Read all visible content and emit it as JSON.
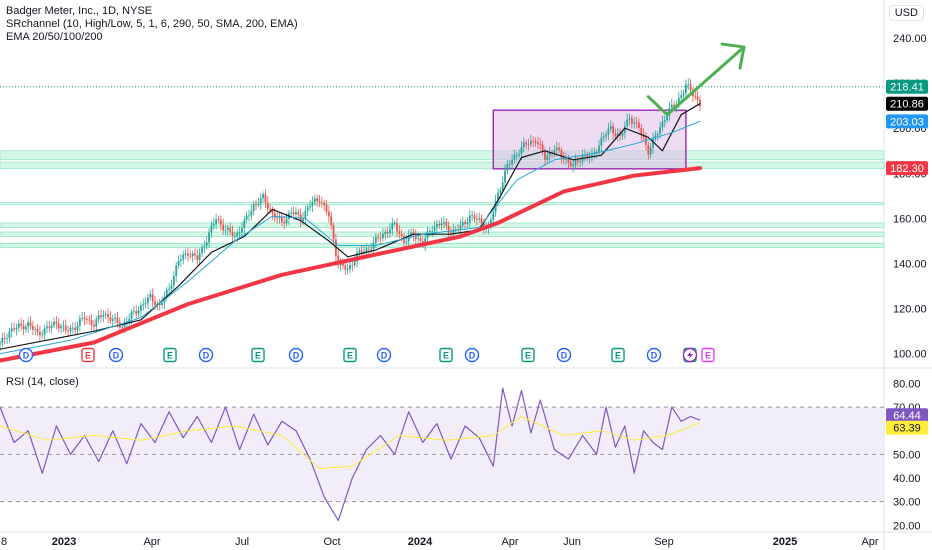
{
  "legend": {
    "title": "Badger Meter, Inc., 1D, NYSE",
    "sr": "SRchannel (10, High/Low, 5, 1, 6, 290, 50, SMA, 200, EMA)",
    "ema": "EMA 20/50/100/200"
  },
  "currency": "USD",
  "rsi_title": "RSI (14, close)",
  "chart_data": [
    {
      "type": "line",
      "title": "Badger Meter, Inc., 1D, NYSE",
      "x_ticks": [
        "8",
        "2023",
        "Apr",
        "Jul",
        "Oct",
        "2024",
        "Apr",
        "Jun",
        "Sep",
        "2025",
        "Apr"
      ],
      "y_ticks": [
        100,
        120,
        140,
        160,
        180,
        200,
        220,
        240
      ],
      "ylim": [
        95,
        248
      ],
      "price_labels": [
        {
          "text": "218.41",
          "value": 218.41,
          "color": "#089981"
        },
        {
          "text": "210.86",
          "value": 210.86,
          "color": "#000000"
        },
        {
          "text": "203.03",
          "value": 203.03,
          "color": "#2196f3"
        },
        {
          "text": "182.30",
          "value": 182.3,
          "color": "#f23645"
        }
      ],
      "price_line": 218.41,
      "series": [
        {
          "values": [
            [
              0,
              104
            ],
            [
              4,
              110
            ],
            [
              8,
              112
            ],
            [
              12,
              113
            ],
            [
              16,
              109
            ],
            [
              20,
              111
            ],
            [
              24,
              114
            ],
            [
              28,
              110
            ],
            [
              32,
              112
            ],
            [
              36,
              116
            ],
            [
              40,
              113
            ],
            [
              44,
              118
            ],
            [
              48,
              115
            ],
            [
              52,
              112
            ],
            [
              56,
              117
            ],
            [
              60,
              121
            ],
            [
              64,
              125
            ],
            [
              68,
              121
            ],
            [
              72,
              129
            ],
            [
              76,
              141
            ],
            [
              80,
              145
            ],
            [
              84,
              142
            ],
            [
              88,
              151
            ],
            [
              92,
              160
            ],
            [
              96,
              155
            ],
            [
              100,
              152
            ],
            [
              104,
              158
            ],
            [
              108,
              166
            ],
            [
              112,
              169
            ],
            [
              116,
              162
            ],
            [
              120,
              158
            ],
            [
              124,
              163
            ],
            [
              128,
              160
            ],
            [
              132,
              166
            ],
            [
              136,
              169
            ],
            [
              140,
              161
            ],
            [
              144,
              140
            ],
            [
              148,
              137
            ],
            [
              152,
              144
            ],
            [
              156,
              146
            ],
            [
              160,
              150
            ],
            [
              164,
              154
            ],
            [
              168,
              157
            ],
            [
              172,
              150
            ],
            [
              176,
              153
            ],
            [
              180,
              149
            ],
            [
              184,
              156
            ],
            [
              188,
              158
            ],
            [
              192,
              154
            ],
            [
              196,
              156
            ],
            [
              200,
              161
            ],
            [
              204,
              159
            ],
            [
              208,
              155
            ],
            [
              212,
              171
            ],
            [
              216,
              183
            ],
            [
              220,
              189
            ],
            [
              224,
              193
            ],
            [
              228,
              195
            ],
            [
              232,
              187
            ],
            [
              236,
              191
            ],
            [
              240,
              187
            ],
            [
              244,
              183
            ],
            [
              248,
              188
            ],
            [
              252,
              187
            ],
            [
              256,
              195
            ],
            [
              260,
              200
            ],
            [
              264,
              196
            ],
            [
              268,
              205
            ],
            [
              272,
              200
            ],
            [
              276,
              190
            ],
            [
              280,
              198
            ],
            [
              284,
              207
            ],
            [
              288,
              211
            ],
            [
              292,
              219
            ],
            [
              296,
              214
            ],
            [
              298,
              210.86
            ]
          ]
        },
        {
          "name": "EMA 20",
          "color": "#131722",
          "values": [
            [
              0,
              102
            ],
            [
              20,
              106
            ],
            [
              40,
              110
            ],
            [
              60,
              115
            ],
            [
              76,
              130
            ],
            [
              90,
              145
            ],
            [
              104,
              152
            ],
            [
              116,
              164
            ],
            [
              128,
              159
            ],
            [
              140,
              150
            ],
            [
              148,
              143
            ],
            [
              160,
              146
            ],
            [
              176,
              153
            ],
            [
              192,
              153
            ],
            [
              204,
              155
            ],
            [
              212,
              168
            ],
            [
              222,
              187
            ],
            [
              232,
              190
            ],
            [
              244,
              186
            ],
            [
              256,
              188
            ],
            [
              266,
              200
            ],
            [
              276,
              196
            ],
            [
              282,
              190
            ],
            [
              290,
              206
            ],
            [
              298,
              210.86
            ]
          ]
        },
        {
          "name": "EMA 50",
          "color": "#26a8d4",
          "values": [
            [
              0,
              100
            ],
            [
              30,
              106
            ],
            [
              60,
              116
            ],
            [
              80,
              132
            ],
            [
              100,
              150
            ],
            [
              116,
              161
            ],
            [
              130,
              160
            ],
            [
              144,
              148
            ],
            [
              160,
              148
            ],
            [
              180,
              153
            ],
            [
              204,
              156
            ],
            [
              220,
              177
            ],
            [
              236,
              186
            ],
            [
              254,
              189
            ],
            [
              270,
              193
            ],
            [
              286,
              198
            ],
            [
              298,
              203.03
            ]
          ]
        },
        {
          "name": "EMA 200",
          "color": "#f23645",
          "values": [
            [
              0,
              97
            ],
            [
              40,
              105
            ],
            [
              80,
              122
            ],
            [
              120,
              135
            ],
            [
              160,
              144
            ],
            [
              196,
              152
            ],
            [
              212,
              158
            ],
            [
              240,
              172
            ],
            [
              270,
              179
            ],
            [
              298,
              182.3
            ]
          ]
        }
      ],
      "markers": [
        "D",
        "E",
        "D",
        "E",
        "D",
        "E",
        "D",
        "E",
        "D",
        "E",
        "D",
        "E",
        "D",
        "E",
        "D",
        "E"
      ],
      "projection": "up"
    },
    {
      "type": "line",
      "title": "RSI (14, close)",
      "y_ticks": [
        20,
        30,
        40,
        50,
        60,
        70,
        80
      ],
      "ylim": [
        18,
        84
      ],
      "bands": [
        30,
        50,
        70
      ],
      "value_labels": [
        {
          "text": "64.44",
          "value": 64.44,
          "color": "#7e57c2"
        },
        {
          "text": "63.39",
          "value": 63.39,
          "color": "#ffeb3b"
        }
      ],
      "series": [
        {
          "name": "RSI",
          "color": "#7e57c2",
          "values": [
            [
              0,
              70
            ],
            [
              6,
              55
            ],
            [
              12,
              60
            ],
            [
              18,
              42
            ],
            [
              24,
              62
            ],
            [
              30,
              50
            ],
            [
              36,
              58
            ],
            [
              42,
              47
            ],
            [
              48,
              60
            ],
            [
              54,
              46
            ],
            [
              60,
              63
            ],
            [
              66,
              55
            ],
            [
              72,
              68
            ],
            [
              78,
              57
            ],
            [
              84,
              66
            ],
            [
              90,
              55
            ],
            [
              96,
              70
            ],
            [
              102,
              52
            ],
            [
              108,
              67
            ],
            [
              114,
              54
            ],
            [
              120,
              64
            ],
            [
              126,
              60
            ],
            [
              132,
              48
            ],
            [
              138,
              32
            ],
            [
              144,
              22
            ],
            [
              150,
              40
            ],
            [
              156,
              52
            ],
            [
              162,
              58
            ],
            [
              168,
              50
            ],
            [
              174,
              68
            ],
            [
              180,
              55
            ],
            [
              186,
              63
            ],
            [
              192,
              48
            ],
            [
              198,
              62
            ],
            [
              204,
              57
            ],
            [
              210,
              45
            ],
            [
              214,
              78
            ],
            [
              218,
              62
            ],
            [
              222,
              77
            ],
            [
              226,
              59
            ],
            [
              230,
              73
            ],
            [
              236,
              52
            ],
            [
              242,
              48
            ],
            [
              248,
              58
            ],
            [
              254,
              50
            ],
            [
              258,
              70
            ],
            [
              262,
              53
            ],
            [
              266,
              62
            ],
            [
              270,
              42
            ],
            [
              274,
              60
            ],
            [
              278,
              55
            ],
            [
              282,
              52
            ],
            [
              286,
              70
            ],
            [
              290,
              64
            ],
            [
              294,
              66
            ],
            [
              298,
              64.44
            ]
          ]
        },
        {
          "name": "MA",
          "color": "#ffeb3b",
          "values": [
            [
              0,
              62
            ],
            [
              20,
              56
            ],
            [
              40,
              58
            ],
            [
              60,
              56
            ],
            [
              80,
              60
            ],
            [
              100,
              62
            ],
            [
              120,
              58
            ],
            [
              136,
              44
            ],
            [
              150,
              45
            ],
            [
              170,
              58
            ],
            [
              190,
              56
            ],
            [
              210,
              58
            ],
            [
              222,
              66
            ],
            [
              240,
              58
            ],
            [
              256,
              60
            ],
            [
              270,
              56
            ],
            [
              284,
              58
            ],
            [
              298,
              63.39
            ]
          ]
        }
      ]
    }
  ]
}
